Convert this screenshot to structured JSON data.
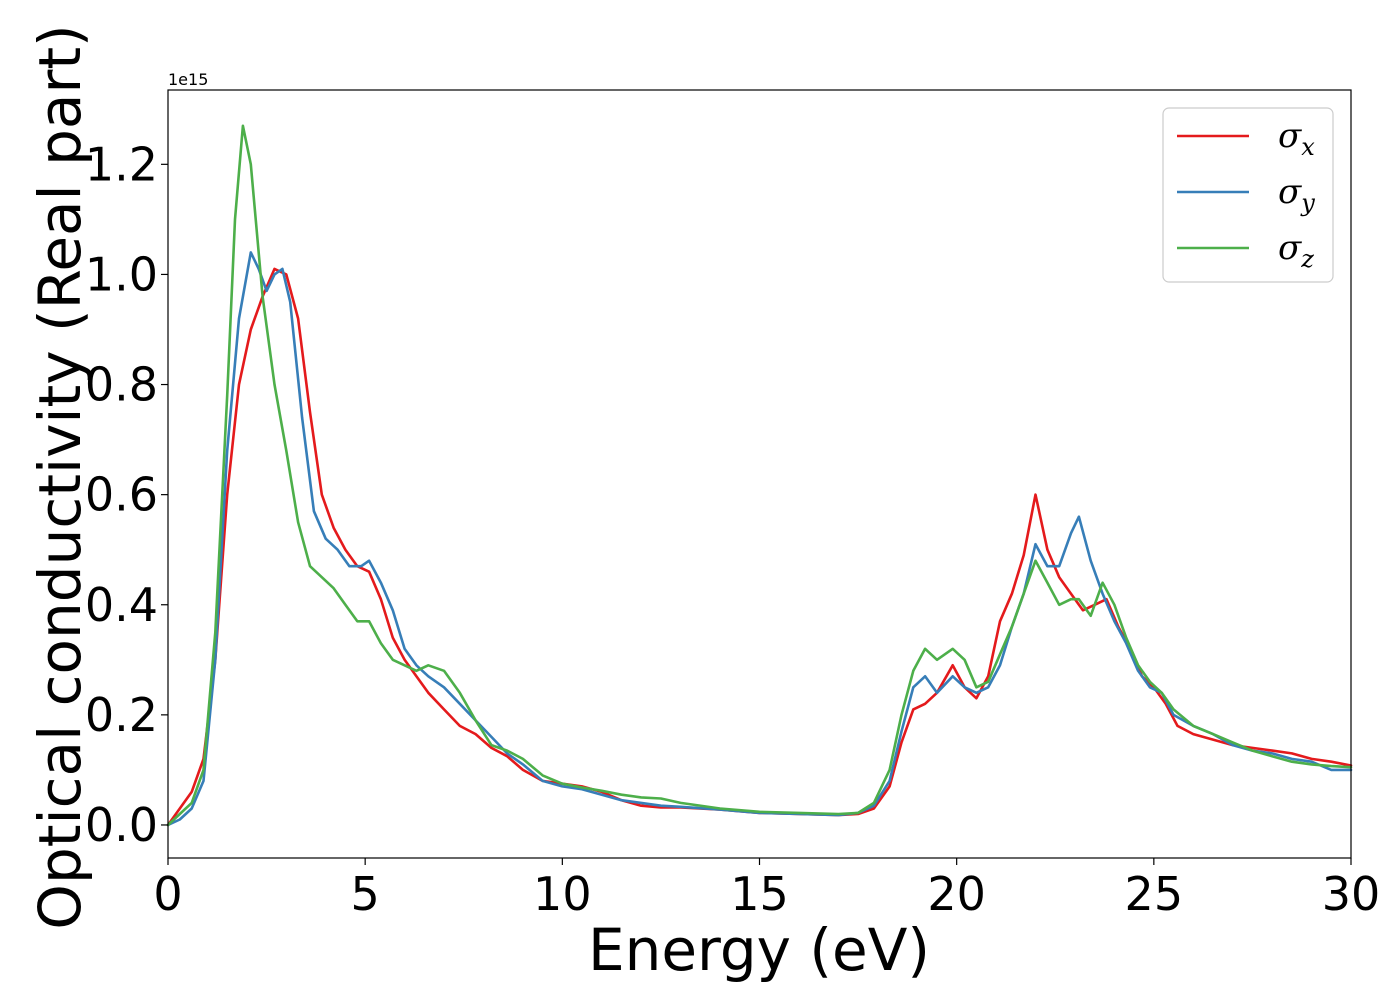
{
  "chart_data": {
    "type": "line",
    "xlabel": "Energy (eV)",
    "ylabel": "Optical conductivity (Real part)",
    "y_offset_text": "1e15",
    "xlim": [
      0,
      30
    ],
    "ylim": [
      -0.06,
      1.335
    ],
    "x_ticks": [
      0,
      5,
      10,
      15,
      20,
      25,
      30
    ],
    "y_ticks": [
      0.0,
      0.2,
      0.4,
      0.6,
      0.8,
      1.0,
      1.2
    ],
    "x_tick_labels": [
      "0",
      "5",
      "10",
      "15",
      "20",
      "25",
      "30"
    ],
    "y_tick_labels": [
      "0.0",
      "0.2",
      "0.4",
      "0.6",
      "0.8",
      "1.0",
      "1.2"
    ],
    "grid": false,
    "legend_position": "top-right",
    "series": [
      {
        "name": "σx",
        "symbol": "σ",
        "subscript": "x",
        "color": "#e41a1c",
        "points": [
          [
            0,
            0
          ],
          [
            0.3,
            0.03
          ],
          [
            0.6,
            0.06
          ],
          [
            0.9,
            0.12
          ],
          [
            1.2,
            0.3
          ],
          [
            1.5,
            0.6
          ],
          [
            1.8,
            0.8
          ],
          [
            2.1,
            0.9
          ],
          [
            2.4,
            0.96
          ],
          [
            2.7,
            1.01
          ],
          [
            3.0,
            1.0
          ],
          [
            3.3,
            0.92
          ],
          [
            3.6,
            0.75
          ],
          [
            3.9,
            0.6
          ],
          [
            4.2,
            0.54
          ],
          [
            4.5,
            0.5
          ],
          [
            4.8,
            0.47
          ],
          [
            5.1,
            0.46
          ],
          [
            5.4,
            0.41
          ],
          [
            5.7,
            0.34
          ],
          [
            6.0,
            0.3
          ],
          [
            6.3,
            0.27
          ],
          [
            6.6,
            0.24
          ],
          [
            7.0,
            0.21
          ],
          [
            7.4,
            0.18
          ],
          [
            7.8,
            0.165
          ],
          [
            8.2,
            0.14
          ],
          [
            8.6,
            0.125
          ],
          [
            9.0,
            0.1
          ],
          [
            9.5,
            0.08
          ],
          [
            10.0,
            0.075
          ],
          [
            10.5,
            0.07
          ],
          [
            11.0,
            0.06
          ],
          [
            11.5,
            0.045
          ],
          [
            12.0,
            0.035
          ],
          [
            12.5,
            0.032
          ],
          [
            13.0,
            0.032
          ],
          [
            14.0,
            0.028
          ],
          [
            15.0,
            0.022
          ],
          [
            16.0,
            0.02
          ],
          [
            17.0,
            0.018
          ],
          [
            17.5,
            0.02
          ],
          [
            17.9,
            0.03
          ],
          [
            18.3,
            0.07
          ],
          [
            18.6,
            0.15
          ],
          [
            18.9,
            0.21
          ],
          [
            19.2,
            0.22
          ],
          [
            19.5,
            0.24
          ],
          [
            19.9,
            0.29
          ],
          [
            20.2,
            0.25
          ],
          [
            20.5,
            0.23
          ],
          [
            20.8,
            0.27
          ],
          [
            21.1,
            0.37
          ],
          [
            21.4,
            0.42
          ],
          [
            21.7,
            0.49
          ],
          [
            22.0,
            0.6
          ],
          [
            22.3,
            0.5
          ],
          [
            22.6,
            0.45
          ],
          [
            22.9,
            0.42
          ],
          [
            23.2,
            0.39
          ],
          [
            23.5,
            0.4
          ],
          [
            23.8,
            0.41
          ],
          [
            24.1,
            0.36
          ],
          [
            24.4,
            0.32
          ],
          [
            24.7,
            0.27
          ],
          [
            25.0,
            0.25
          ],
          [
            25.3,
            0.22
          ],
          [
            25.6,
            0.18
          ],
          [
            26.0,
            0.165
          ],
          [
            26.5,
            0.155
          ],
          [
            27.0,
            0.145
          ],
          [
            27.5,
            0.14
          ],
          [
            28.0,
            0.135
          ],
          [
            28.5,
            0.13
          ],
          [
            29.0,
            0.12
          ],
          [
            29.5,
            0.115
          ],
          [
            30.0,
            0.108
          ]
        ]
      },
      {
        "name": "σy",
        "symbol": "σ",
        "subscript": "y",
        "color": "#377eb8",
        "points": [
          [
            0,
            0
          ],
          [
            0.3,
            0.01
          ],
          [
            0.6,
            0.03
          ],
          [
            0.9,
            0.08
          ],
          [
            1.2,
            0.3
          ],
          [
            1.5,
            0.68
          ],
          [
            1.8,
            0.92
          ],
          [
            2.1,
            1.04
          ],
          [
            2.3,
            1.01
          ],
          [
            2.5,
            0.97
          ],
          [
            2.7,
            1.0
          ],
          [
            2.9,
            1.01
          ],
          [
            3.1,
            0.95
          ],
          [
            3.4,
            0.74
          ],
          [
            3.7,
            0.57
          ],
          [
            4.0,
            0.52
          ],
          [
            4.3,
            0.5
          ],
          [
            4.6,
            0.47
          ],
          [
            4.9,
            0.47
          ],
          [
            5.1,
            0.48
          ],
          [
            5.4,
            0.44
          ],
          [
            5.7,
            0.39
          ],
          [
            6.0,
            0.32
          ],
          [
            6.3,
            0.29
          ],
          [
            6.6,
            0.27
          ],
          [
            7.0,
            0.25
          ],
          [
            7.4,
            0.22
          ],
          [
            7.8,
            0.19
          ],
          [
            8.2,
            0.16
          ],
          [
            8.6,
            0.13
          ],
          [
            9.0,
            0.11
          ],
          [
            9.5,
            0.08
          ],
          [
            10.0,
            0.07
          ],
          [
            10.5,
            0.065
          ],
          [
            11.0,
            0.055
          ],
          [
            11.5,
            0.045
          ],
          [
            12.0,
            0.04
          ],
          [
            12.5,
            0.035
          ],
          [
            13.0,
            0.033
          ],
          [
            14.0,
            0.028
          ],
          [
            15.0,
            0.022
          ],
          [
            16.0,
            0.02
          ],
          [
            17.0,
            0.018
          ],
          [
            17.5,
            0.022
          ],
          [
            17.9,
            0.035
          ],
          [
            18.3,
            0.08
          ],
          [
            18.6,
            0.17
          ],
          [
            18.9,
            0.25
          ],
          [
            19.2,
            0.27
          ],
          [
            19.5,
            0.24
          ],
          [
            19.9,
            0.27
          ],
          [
            20.2,
            0.25
          ],
          [
            20.5,
            0.24
          ],
          [
            20.8,
            0.25
          ],
          [
            21.1,
            0.29
          ],
          [
            21.4,
            0.36
          ],
          [
            21.7,
            0.42
          ],
          [
            22.0,
            0.51
          ],
          [
            22.3,
            0.47
          ],
          [
            22.6,
            0.47
          ],
          [
            22.9,
            0.53
          ],
          [
            23.1,
            0.56
          ],
          [
            23.4,
            0.48
          ],
          [
            23.7,
            0.42
          ],
          [
            24.0,
            0.37
          ],
          [
            24.3,
            0.33
          ],
          [
            24.6,
            0.28
          ],
          [
            24.9,
            0.25
          ],
          [
            25.2,
            0.24
          ],
          [
            25.5,
            0.2
          ],
          [
            26.0,
            0.18
          ],
          [
            26.5,
            0.165
          ],
          [
            27.0,
            0.145
          ],
          [
            27.5,
            0.135
          ],
          [
            28.0,
            0.13
          ],
          [
            28.5,
            0.12
          ],
          [
            29.0,
            0.115
          ],
          [
            29.5,
            0.1
          ],
          [
            30.0,
            0.1
          ]
        ]
      },
      {
        "name": "σz",
        "symbol": "σ",
        "subscript": "z",
        "color": "#4daf4a",
        "points": [
          [
            0,
            0
          ],
          [
            0.3,
            0.02
          ],
          [
            0.6,
            0.04
          ],
          [
            0.9,
            0.1
          ],
          [
            1.2,
            0.35
          ],
          [
            1.5,
            0.78
          ],
          [
            1.7,
            1.1
          ],
          [
            1.9,
            1.27
          ],
          [
            2.1,
            1.2
          ],
          [
            2.4,
            0.96
          ],
          [
            2.7,
            0.8
          ],
          [
            3.0,
            0.68
          ],
          [
            3.3,
            0.55
          ],
          [
            3.6,
            0.47
          ],
          [
            3.9,
            0.45
          ],
          [
            4.2,
            0.43
          ],
          [
            4.5,
            0.4
          ],
          [
            4.8,
            0.37
          ],
          [
            5.1,
            0.37
          ],
          [
            5.4,
            0.33
          ],
          [
            5.7,
            0.3
          ],
          [
            6.0,
            0.29
          ],
          [
            6.3,
            0.28
          ],
          [
            6.6,
            0.29
          ],
          [
            7.0,
            0.28
          ],
          [
            7.4,
            0.24
          ],
          [
            7.8,
            0.19
          ],
          [
            8.2,
            0.145
          ],
          [
            8.6,
            0.135
          ],
          [
            9.0,
            0.12
          ],
          [
            9.5,
            0.09
          ],
          [
            10.0,
            0.075
          ],
          [
            10.5,
            0.068
          ],
          [
            11.0,
            0.062
          ],
          [
            11.5,
            0.055
          ],
          [
            12.0,
            0.05
          ],
          [
            12.5,
            0.048
          ],
          [
            13.0,
            0.04
          ],
          [
            14.0,
            0.03
          ],
          [
            15.0,
            0.024
          ],
          [
            16.0,
            0.022
          ],
          [
            17.0,
            0.02
          ],
          [
            17.5,
            0.022
          ],
          [
            17.9,
            0.04
          ],
          [
            18.3,
            0.1
          ],
          [
            18.6,
            0.2
          ],
          [
            18.9,
            0.28
          ],
          [
            19.2,
            0.32
          ],
          [
            19.5,
            0.3
          ],
          [
            19.9,
            0.32
          ],
          [
            20.2,
            0.3
          ],
          [
            20.5,
            0.25
          ],
          [
            20.8,
            0.26
          ],
          [
            21.1,
            0.31
          ],
          [
            21.4,
            0.36
          ],
          [
            21.7,
            0.42
          ],
          [
            22.0,
            0.48
          ],
          [
            22.3,
            0.44
          ],
          [
            22.6,
            0.4
          ],
          [
            22.9,
            0.41
          ],
          [
            23.1,
            0.41
          ],
          [
            23.4,
            0.38
          ],
          [
            23.7,
            0.44
          ],
          [
            24.0,
            0.4
          ],
          [
            24.3,
            0.34
          ],
          [
            24.6,
            0.29
          ],
          [
            24.9,
            0.26
          ],
          [
            25.2,
            0.24
          ],
          [
            25.5,
            0.21
          ],
          [
            26.0,
            0.18
          ],
          [
            26.5,
            0.165
          ],
          [
            27.0,
            0.15
          ],
          [
            27.5,
            0.135
          ],
          [
            28.0,
            0.125
          ],
          [
            28.5,
            0.115
          ],
          [
            29.0,
            0.11
          ],
          [
            29.5,
            0.107
          ],
          [
            30.0,
            0.105
          ]
        ]
      }
    ]
  }
}
